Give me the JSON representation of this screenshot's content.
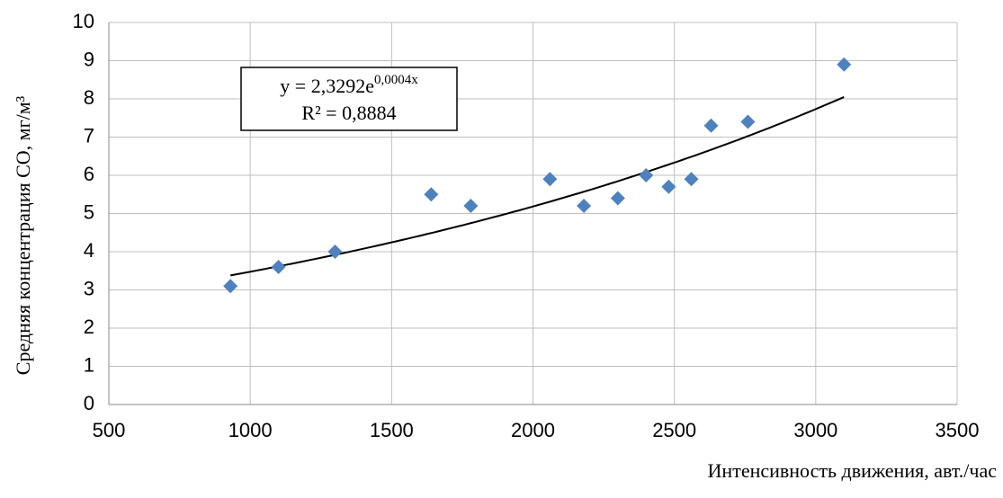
{
  "chart_data": {
    "type": "scatter",
    "x_label": "Интенсивность движения, авт./час",
    "y_label": "Средняя концентрация СО, мг/м³",
    "x": [
      930,
      1100,
      1300,
      1640,
      1780,
      2060,
      2180,
      2300,
      2400,
      2480,
      2560,
      2630,
      2760,
      3100
    ],
    "values": [
      3.1,
      3.6,
      4.0,
      5.5,
      5.2,
      5.9,
      5.2,
      5.4,
      6.0,
      5.7,
      5.9,
      7.3,
      7.4,
      8.9
    ],
    "color": "#4f81bd",
    "xlim": [
      500,
      3500
    ],
    "xticks": [
      500,
      1000,
      1500,
      2000,
      2500,
      3000,
      3500
    ],
    "ylim": [
      0,
      10
    ],
    "yticks": [
      0,
      1,
      2,
      3,
      4,
      5,
      6,
      7,
      8,
      9,
      10
    ],
    "grid": true,
    "trendline": {
      "type": "exponential",
      "a": 2.3292,
      "b": 0.0004,
      "equation_base": "y = 2,3292e",
      "equation_exponent": "0,0004x",
      "r2_label": "R² = 0,8884"
    }
  }
}
